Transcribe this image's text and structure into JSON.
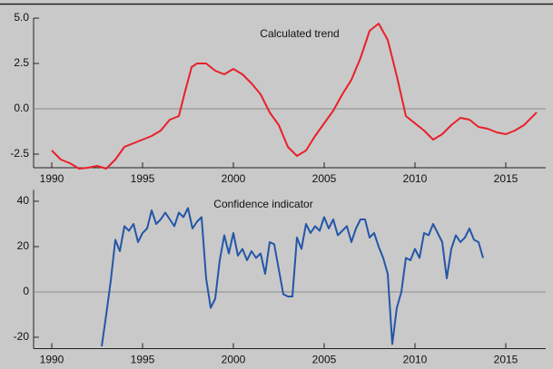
{
  "chart_data": [
    {
      "type": "line",
      "annotation": "Calculated trend",
      "color": "#e8202a",
      "zero_line": true,
      "x": [
        1990,
        1990.5,
        1991,
        1991.5,
        1992,
        1992.5,
        1993,
        1993.5,
        1994,
        1994.5,
        1995,
        1995.5,
        1996,
        1996.5,
        1997,
        1997.3,
        1997.7,
        1998,
        1998.5,
        1999,
        1999.5,
        2000,
        2000.5,
        2001,
        2001.5,
        2002,
        2002.5,
        2003,
        2003.5,
        2004,
        2004.5,
        2005,
        2005.5,
        2006,
        2006.5,
        2007,
        2007.5,
        2008,
        2008.5,
        2009,
        2009.5,
        2010,
        2010.5,
        2011,
        2011.5,
        2012,
        2012.5,
        2013,
        2013.5,
        2014,
        2014.5,
        2015,
        2015.5,
        2016,
        2016.7
      ],
      "values": [
        -2.3,
        -2.8,
        -3.0,
        -3.3,
        -3.25,
        -3.15,
        -3.3,
        -2.8,
        -2.1,
        -1.9,
        -1.7,
        -1.5,
        -1.2,
        -0.6,
        -0.4,
        0.8,
        2.3,
        2.5,
        2.5,
        2.1,
        1.9,
        2.2,
        1.9,
        1.4,
        0.8,
        -0.2,
        -0.9,
        -2.1,
        -2.6,
        -2.3,
        -1.5,
        -0.8,
        -0.1,
        0.8,
        1.6,
        2.8,
        4.3,
        4.7,
        3.8,
        1.8,
        -0.4,
        -0.8,
        -1.2,
        -1.7,
        -1.4,
        -0.9,
        -0.5,
        -0.6,
        -1.0,
        -1.1,
        -1.3,
        -1.4,
        -1.2,
        -0.9,
        -0.2
      ],
      "xlim": [
        1989,
        2017.2
      ],
      "xticks": [
        1990,
        1995,
        2000,
        2005,
        2010,
        2015
      ],
      "ylim": [
        -3.25,
        5.0
      ],
      "yticks": [
        {
          "value": -2.5,
          "label": "-2.5"
        },
        {
          "value": 0,
          "label": "0.0"
        },
        {
          "value": 2.5,
          "label": "2.5"
        },
        {
          "value": 5,
          "label": "5.0"
        }
      ]
    },
    {
      "type": "line",
      "annotation": "Confidence indicator",
      "color": "#2456a8",
      "zero_line": true,
      "x": [
        1992.75,
        1993,
        1993.25,
        1993.5,
        1993.75,
        1994,
        1994.25,
        1994.5,
        1994.75,
        1995,
        1995.25,
        1995.5,
        1995.75,
        1996,
        1996.25,
        1996.5,
        1996.75,
        1997,
        1997.25,
        1997.5,
        1997.75,
        1998,
        1998.25,
        1998.5,
        1998.75,
        1999,
        1999.25,
        1999.5,
        1999.75,
        2000,
        2000.25,
        2000.5,
        2000.75,
        2001,
        2001.25,
        2001.5,
        2001.75,
        2002,
        2002.25,
        2002.5,
        2002.75,
        2003,
        2003.25,
        2003.5,
        2003.75,
        2004,
        2004.25,
        2004.5,
        2004.75,
        2005,
        2005.25,
        2005.5,
        2005.75,
        2006,
        2006.25,
        2006.5,
        2006.75,
        2007,
        2007.25,
        2007.5,
        2007.75,
        2008,
        2008.25,
        2008.5,
        2008.75,
        2009,
        2009.25,
        2009.5,
        2009.75,
        2010,
        2010.25,
        2010.5,
        2010.75,
        2011,
        2011.25,
        2011.5,
        2011.75,
        2012,
        2012.25,
        2012.5,
        2012.75,
        2013,
        2013.25,
        2013.5,
        2013.75
      ],
      "values": [
        -24,
        -10,
        5,
        23,
        18,
        29,
        27,
        30,
        22,
        26,
        28,
        36,
        30,
        32,
        35,
        32,
        29,
        35,
        33,
        37,
        28,
        31,
        33,
        6,
        -7,
        -3,
        14,
        25,
        17,
        26,
        16,
        19,
        14,
        18,
        15,
        17,
        8,
        22,
        21,
        10,
        -1,
        -2,
        -2,
        24,
        19,
        30,
        26,
        29,
        27,
        33,
        28,
        32,
        25,
        27,
        29,
        22,
        28,
        32,
        32,
        24,
        26,
        20,
        15,
        8,
        -23,
        -7,
        0,
        15,
        14,
        19,
        15,
        26,
        25,
        30,
        26,
        22,
        6,
        19,
        25,
        22,
        24,
        28,
        23,
        22,
        15
      ],
      "xlim": [
        1989,
        2017.2
      ],
      "xticks": [
        1990,
        1995,
        2000,
        2005,
        2010,
        2015
      ],
      "ylim": [
        -25,
        45
      ],
      "yticks": [
        -20,
        0,
        20,
        40
      ]
    }
  ]
}
